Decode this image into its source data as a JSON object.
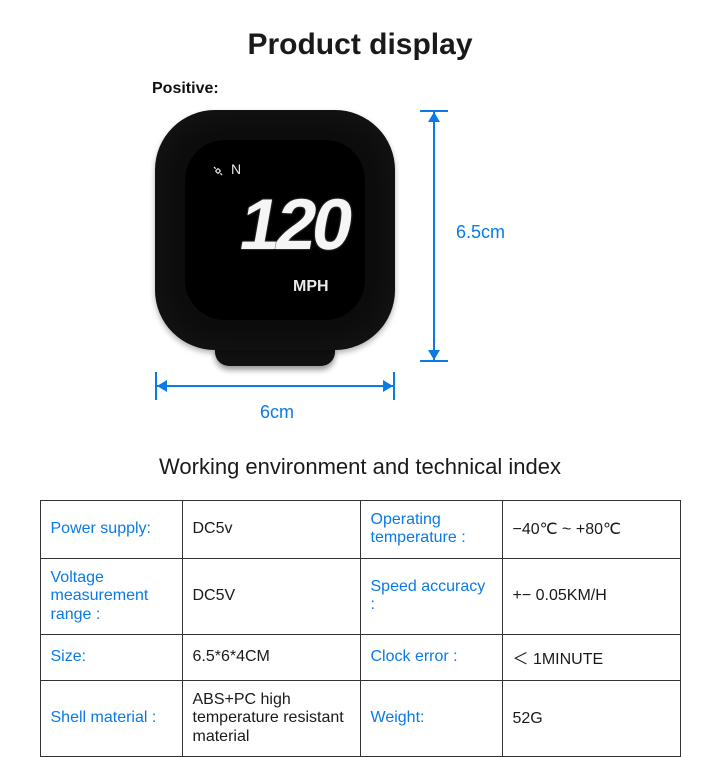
{
  "title": "Product display",
  "positive_label": "Positive:",
  "device": {
    "direction": "N",
    "speed": "120",
    "unit": "MPH"
  },
  "dimensions": {
    "height_label": "6.5cm",
    "width_label": "6cm",
    "arrow_color": "#0a7ae6"
  },
  "section_title": "Working environment and technical index",
  "specs": {
    "rows": [
      {
        "l1": "Power supply:",
        "v1": "DC5v",
        "l2": "Operating temperature :",
        "v2": "−40℃ ~ +80℃",
        "l2small": true
      },
      {
        "l1": "Voltage measurement range :",
        "v1": "DC5V",
        "l2": "Speed accuracy :",
        "v2": "+−  0.05KM/H",
        "l1small": true
      },
      {
        "l1": "Size:",
        "v1": "6.5*6*4CM",
        "l2": "Clock error :",
        "v2": "＜ 1MINUTE"
      },
      {
        "l1": "Shell material :",
        "v1": "ABS+PC high temperature resistant material",
        "l2": "Weight:",
        "v2": "52G",
        "v1small": true
      }
    ]
  },
  "colors": {
    "accent": "#0a7ae6",
    "device_body": "#0c0c0c",
    "text": "#1a1a1a",
    "border": "#333333",
    "background": "#ffffff"
  },
  "typography": {
    "title_fontsize": 30,
    "section_fontsize": 22,
    "table_fontsize": 16
  }
}
